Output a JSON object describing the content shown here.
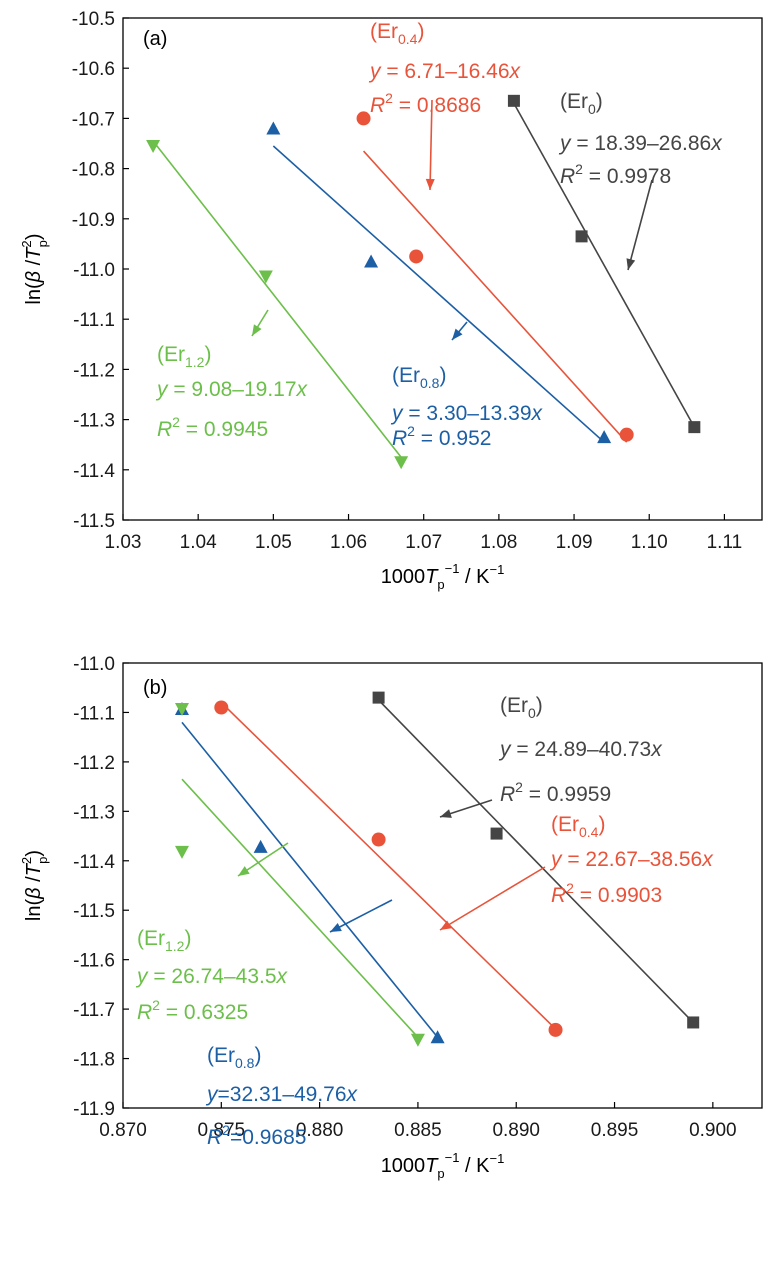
{
  "chart_data": [
    {
      "type": "scatter",
      "panel_label": "(a)",
      "xlabel": {
        "main": "1000",
        "var": "T",
        "sub": "p",
        "sup": "−1",
        "unit": " / K",
        "unit_sup": "−1"
      },
      "ylabel": {
        "pre": "ln(",
        "beta": "β",
        "slash": " /",
        "var": "T",
        "sup": "2",
        "sub": "p",
        "post": ")"
      },
      "xlim": [
        1.03,
        1.115
      ],
      "ylim": [
        -11.5,
        -10.5
      ],
      "xticks": [
        "1.03",
        "1.04",
        "1.05",
        "1.06",
        "1.07",
        "1.08",
        "1.09",
        "1.10",
        "1.11"
      ],
      "yticks": [
        "-10.5",
        "-10.6",
        "-10.7",
        "-10.8",
        "-10.9",
        "-11.0",
        "-11.1",
        "-11.2",
        "-11.3",
        "-11.4",
        "-11.5"
      ],
      "series": [
        {
          "name": "(Er0)",
          "color": "#454545",
          "marker": "square",
          "x": [
            1.082,
            1.091,
            1.106
          ],
          "y": [
            -10.665,
            -10.935,
            -11.315
          ],
          "fit": {
            "x": [
              1.082,
              1.106
            ],
            "y": [
              -10.67,
              -11.315
            ]
          },
          "label": {
            "name": "(Er",
            "sub": "0",
            "close": ")",
            "eq_y": "y",
            "eq_mid": " = 18.39–26.86",
            "eq_x": "x",
            "r2_r": "R",
            "r2_sup": "2",
            "r2_val": " = 0.9978"
          }
        },
        {
          "name": "(Er0.4)",
          "color": "#e8533a",
          "marker": "circle",
          "x": [
            1.062,
            1.069,
            1.097
          ],
          "y": [
            -10.7,
            -10.975,
            -11.33
          ],
          "fit": {
            "x": [
              1.062,
              1.097
            ],
            "y": [
              -10.765,
              -11.345
            ]
          },
          "label": {
            "name": "(Er",
            "sub": "0.4",
            "close": ")",
            "eq_y": "y",
            "eq_mid": " = 6.71–16.46",
            "eq_x": "x",
            "r2_r": "R",
            "r2_sup": "2",
            "r2_val": " = 0.8686"
          }
        },
        {
          "name": "(Er0.8)",
          "color": "#1c5fa5",
          "marker": "triangle-up",
          "x": [
            1.05,
            1.063,
            1.094
          ],
          "y": [
            -10.72,
            -10.985,
            -11.335
          ],
          "fit": {
            "x": [
              1.05,
              1.094
            ],
            "y": [
              -10.755,
              -11.345
            ]
          },
          "label": {
            "name": "(Er",
            "sub": "0.8",
            "close": ")",
            "eq_y": "y",
            "eq_mid": " = 3.30–13.39",
            "eq_x": "x",
            "r2_r": "R",
            "r2_sup": "2",
            "r2_val": " = 0.952"
          }
        },
        {
          "name": "(Er1.2)",
          "color": "#6cbf4a",
          "marker": "triangle-down",
          "x": [
            1.034,
            1.049,
            1.067
          ],
          "y": [
            -10.755,
            -11.015,
            -11.385
          ],
          "fit": {
            "x": [
              1.034,
              1.067
            ],
            "y": [
              -10.745,
              -11.375
            ]
          },
          "label": {
            "name": "(Er",
            "sub": "1.2",
            "close": ")",
            "eq_y": "y",
            "eq_mid": " = 9.08–19.17",
            "eq_x": "x",
            "r2_r": "R",
            "r2_sup": "2",
            "r2_val": " = 0.9945"
          }
        }
      ]
    },
    {
      "type": "scatter",
      "panel_label": "(b)",
      "xlabel": {
        "main": "1000",
        "var": "T",
        "sub": "p",
        "sup": "−1",
        "unit": " / K",
        "unit_sup": "−1"
      },
      "ylabel": {
        "pre": "ln(",
        "beta": "β",
        "slash": " /",
        "var": "T",
        "sup": "2",
        "sub": "p",
        "post": ")"
      },
      "xlim": [
        0.87,
        0.9025
      ],
      "ylim": [
        -11.9,
        -11.0
      ],
      "xticks": [
        "0.870",
        "0.875",
        "0.880",
        "0.885",
        "0.890",
        "0.895",
        "0.900"
      ],
      "yticks": [
        "-11.0",
        "-11.1",
        "-11.2",
        "-11.3",
        "-11.4",
        "-11.5",
        "-11.6",
        "-11.7",
        "-11.8",
        "-11.9"
      ],
      "series": [
        {
          "name": "(Er0)",
          "color": "#454545",
          "marker": "square",
          "x": [
            0.883,
            0.889,
            0.899
          ],
          "y": [
            -11.07,
            -11.345,
            -11.727
          ],
          "fit": {
            "x": [
              0.883,
              0.899
            ],
            "y": [
              -11.075,
              -11.727
            ]
          },
          "label": {
            "name": "(Er",
            "sub": "0",
            "close": ")",
            "eq_y": "y",
            "eq_mid": " = 24.89–40.73",
            "eq_x": "x",
            "r2_r": "R",
            "r2_sup": "2",
            "r2_val": " = 0.9959"
          }
        },
        {
          "name": "(Er0.4)",
          "color": "#e8533a",
          "marker": "circle",
          "x": [
            0.875,
            0.883,
            0.892
          ],
          "y": [
            -11.09,
            -11.357,
            -11.742
          ],
          "fit": {
            "x": [
              0.875,
              0.892
            ],
            "y": [
              -11.08,
              -11.74
            ]
          },
          "label": {
            "name": "(Er",
            "sub": "0.4",
            "close": ")",
            "eq_y": "y",
            "eq_mid": " = 22.67–38.56",
            "eq_x": "x",
            "r2_r": "R",
            "r2_sup": "2",
            "r2_val": " = 0.9903"
          }
        },
        {
          "name": "(Er0.8)",
          "color": "#1c5fa5",
          "marker": "triangle-up",
          "x": [
            0.873,
            0.877,
            0.886
          ],
          "y": [
            -11.093,
            -11.372,
            -11.757
          ],
          "fit": {
            "x": [
              0.873,
              0.886
            ],
            "y": [
              -11.12,
              -11.757
            ]
          },
          "label": {
            "name": "(Er",
            "sub": "0.8",
            "close": ")",
            "eq_y": "y",
            "eq_mid": "=32.31–49.76",
            "eq_x": "x",
            "r2_r": "R",
            "r2_sup": "2",
            "r2_val": "=0.9685"
          }
        },
        {
          "name": "(Er1.2)",
          "color": "#6cbf4a",
          "marker": "triangle-down",
          "x": [
            0.873,
            0.873,
            0.885
          ],
          "y": [
            -11.093,
            -11.382,
            -11.762
          ],
          "fit": {
            "x": [
              0.873,
              0.885
            ],
            "y": [
              -11.235,
              -11.757
            ]
          },
          "label": {
            "name": "(Er",
            "sub": "1.2",
            "close": ")",
            "eq_y": "y",
            "eq_mid": " = 26.74–43.5",
            "eq_x": "x",
            "r2_r": "R",
            "r2_sup": "2",
            "r2_val": " = 0.6325"
          }
        }
      ]
    }
  ]
}
